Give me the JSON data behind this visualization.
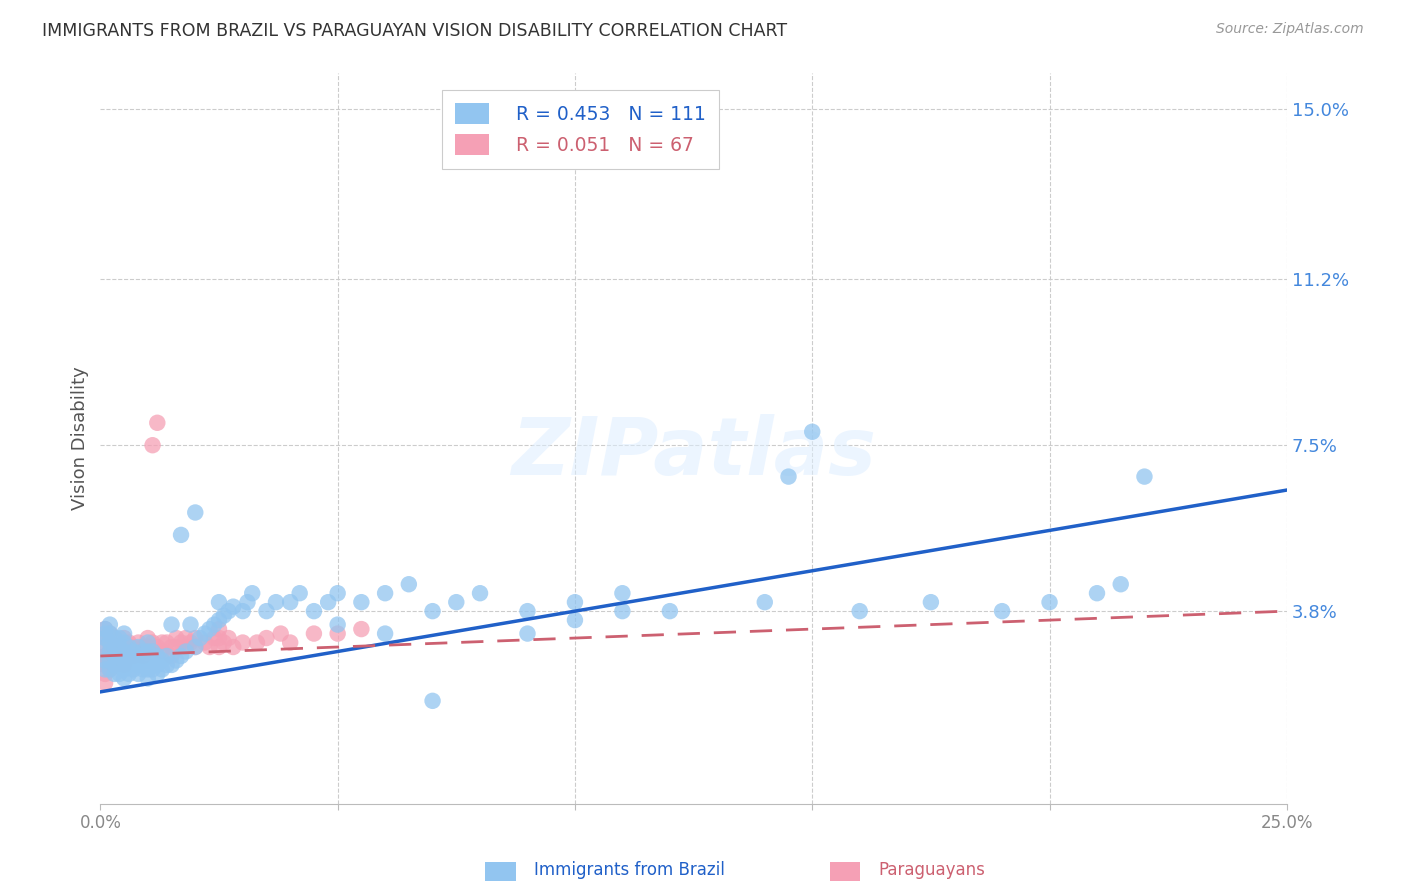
{
  "title": "IMMIGRANTS FROM BRAZIL VS PARAGUAYAN VISION DISABILITY CORRELATION CHART",
  "source": "Source: ZipAtlas.com",
  "ylabel": "Vision Disability",
  "ytick_values": [
    0.0,
    0.038,
    0.075,
    0.112,
    0.15
  ],
  "ytick_labels": [
    "",
    "3.8%",
    "7.5%",
    "11.2%",
    "15.0%"
  ],
  "xlim": [
    0.0,
    0.25
  ],
  "ylim": [
    -0.005,
    0.158
  ],
  "legend_brazil_r": "R = 0.453",
  "legend_brazil_n": "N = 111",
  "legend_paraguay_r": "R = 0.051",
  "legend_paraguay_n": "N = 67",
  "color_brazil": "#92C5F0",
  "color_paraguay": "#F5A0B5",
  "color_brazil_line": "#2060C8",
  "color_paraguay_line": "#CC6070",
  "background_color": "#FFFFFF",
  "watermark_text": "ZIPatlas",
  "brazil_line_x": [
    0.0,
    0.25
  ],
  "brazil_line_y": [
    0.02,
    0.065
  ],
  "paraguay_line_x": [
    0.0,
    0.25
  ],
  "paraguay_line_y": [
    0.028,
    0.038
  ],
  "brazil_x": [
    0.001,
    0.001,
    0.001,
    0.001,
    0.001,
    0.001,
    0.002,
    0.002,
    0.002,
    0.002,
    0.002,
    0.002,
    0.003,
    0.003,
    0.003,
    0.003,
    0.003,
    0.004,
    0.004,
    0.004,
    0.004,
    0.004,
    0.005,
    0.005,
    0.005,
    0.005,
    0.005,
    0.005,
    0.006,
    0.006,
    0.006,
    0.006,
    0.007,
    0.007,
    0.007,
    0.008,
    0.008,
    0.008,
    0.008,
    0.009,
    0.009,
    0.009,
    0.01,
    0.01,
    0.01,
    0.01,
    0.01,
    0.011,
    0.011,
    0.011,
    0.012,
    0.012,
    0.012,
    0.013,
    0.013,
    0.014,
    0.014,
    0.015,
    0.015,
    0.016,
    0.017,
    0.017,
    0.018,
    0.019,
    0.02,
    0.02,
    0.021,
    0.022,
    0.023,
    0.024,
    0.025,
    0.025,
    0.026,
    0.027,
    0.028,
    0.03,
    0.031,
    0.032,
    0.035,
    0.037,
    0.04,
    0.042,
    0.045,
    0.048,
    0.05,
    0.055,
    0.06,
    0.065,
    0.07,
    0.075,
    0.08,
    0.09,
    0.1,
    0.11,
    0.12,
    0.14,
    0.15,
    0.16,
    0.19,
    0.2,
    0.21,
    0.215,
    0.22,
    0.145,
    0.175,
    0.05,
    0.06,
    0.07,
    0.09,
    0.1,
    0.11
  ],
  "brazil_y": [
    0.025,
    0.027,
    0.03,
    0.032,
    0.033,
    0.034,
    0.025,
    0.027,
    0.029,
    0.031,
    0.033,
    0.035,
    0.024,
    0.026,
    0.028,
    0.03,
    0.032,
    0.024,
    0.026,
    0.028,
    0.03,
    0.032,
    0.023,
    0.025,
    0.027,
    0.029,
    0.031,
    0.033,
    0.024,
    0.026,
    0.028,
    0.03,
    0.025,
    0.027,
    0.029,
    0.024,
    0.026,
    0.028,
    0.03,
    0.025,
    0.027,
    0.029,
    0.023,
    0.025,
    0.027,
    0.029,
    0.031,
    0.025,
    0.027,
    0.029,
    0.024,
    0.026,
    0.028,
    0.025,
    0.027,
    0.026,
    0.028,
    0.026,
    0.035,
    0.027,
    0.028,
    0.055,
    0.029,
    0.035,
    0.03,
    0.06,
    0.032,
    0.033,
    0.034,
    0.035,
    0.036,
    0.04,
    0.037,
    0.038,
    0.039,
    0.038,
    0.04,
    0.042,
    0.038,
    0.04,
    0.04,
    0.042,
    0.038,
    0.04,
    0.042,
    0.04,
    0.042,
    0.044,
    0.038,
    0.04,
    0.042,
    0.038,
    0.04,
    0.042,
    0.038,
    0.04,
    0.078,
    0.038,
    0.038,
    0.04,
    0.042,
    0.044,
    0.068,
    0.068,
    0.04,
    0.035,
    0.033,
    0.018,
    0.033,
    0.036,
    0.038
  ],
  "paraguay_x": [
    0.001,
    0.001,
    0.001,
    0.001,
    0.001,
    0.001,
    0.001,
    0.002,
    0.002,
    0.002,
    0.002,
    0.002,
    0.003,
    0.003,
    0.003,
    0.003,
    0.004,
    0.004,
    0.004,
    0.005,
    0.005,
    0.005,
    0.005,
    0.006,
    0.006,
    0.007,
    0.007,
    0.008,
    0.008,
    0.009,
    0.009,
    0.01,
    0.01,
    0.011,
    0.011,
    0.012,
    0.012,
    0.013,
    0.013,
    0.014,
    0.015,
    0.015,
    0.016,
    0.016,
    0.017,
    0.018,
    0.018,
    0.019,
    0.02,
    0.02,
    0.022,
    0.023,
    0.024,
    0.025,
    0.025,
    0.025,
    0.026,
    0.027,
    0.028,
    0.03,
    0.033,
    0.035,
    0.038,
    0.04,
    0.045,
    0.05,
    0.055
  ],
  "paraguay_y": [
    0.03,
    0.032,
    0.034,
    0.028,
    0.026,
    0.024,
    0.022,
    0.029,
    0.031,
    0.033,
    0.027,
    0.025,
    0.03,
    0.032,
    0.028,
    0.026,
    0.031,
    0.029,
    0.027,
    0.03,
    0.032,
    0.028,
    0.026,
    0.031,
    0.029,
    0.03,
    0.028,
    0.031,
    0.029,
    0.03,
    0.028,
    0.032,
    0.03,
    0.031,
    0.075,
    0.03,
    0.08,
    0.031,
    0.029,
    0.031,
    0.03,
    0.028,
    0.032,
    0.03,
    0.031,
    0.03,
    0.032,
    0.031,
    0.03,
    0.032,
    0.031,
    0.03,
    0.032,
    0.03,
    0.032,
    0.034,
    0.031,
    0.032,
    0.03,
    0.031,
    0.031,
    0.032,
    0.033,
    0.031,
    0.033,
    0.033,
    0.034
  ]
}
